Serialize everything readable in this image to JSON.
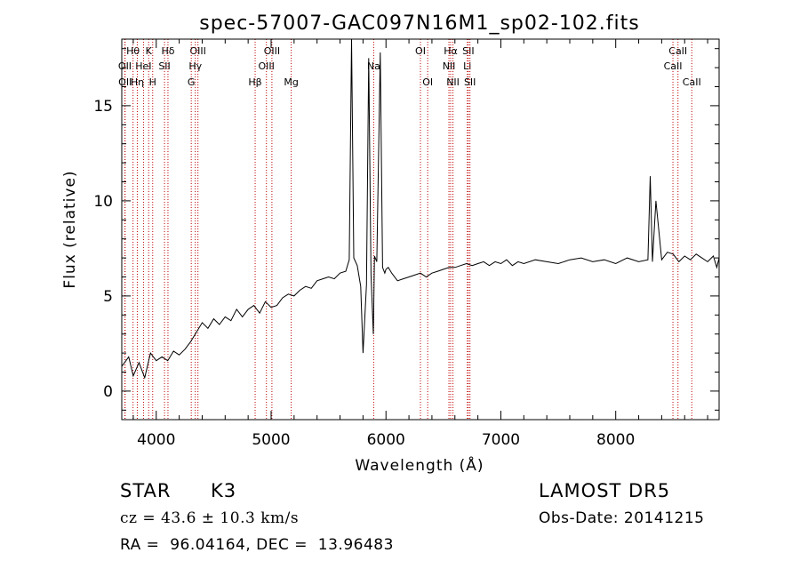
{
  "chart_data": {
    "type": "line",
    "title": "spec-57007-GAC097N16M1_sp02-102.fits",
    "xlabel": "Wavelength (Å)",
    "ylabel": "Flux (relative)",
    "xlim": [
      3700,
      8900
    ],
    "ylim": [
      -1.5,
      18.5
    ],
    "xticks": [
      4000,
      5000,
      6000,
      7000,
      8000
    ],
    "yticks": [
      0,
      5,
      10,
      15
    ],
    "grid": false,
    "series": [
      {
        "color": "#000000",
        "x": [
          3700,
          3760,
          3800,
          3850,
          3900,
          3950,
          4000,
          4050,
          4100,
          4150,
          4200,
          4250,
          4300,
          4350,
          4400,
          4450,
          4500,
          4550,
          4600,
          4650,
          4700,
          4750,
          4800,
          4850,
          4900,
          4950,
          5000,
          5050,
          5100,
          5150,
          5200,
          5250,
          5300,
          5350,
          5400,
          5450,
          5500,
          5550,
          5600,
          5650,
          5680,
          5700,
          5720,
          5750,
          5780,
          5800,
          5830,
          5850,
          5870,
          5890,
          5900,
          5920,
          5950,
          5970,
          5990,
          6000,
          6020,
          6050,
          6100,
          6150,
          6200,
          6250,
          6300,
          6350,
          6400,
          6450,
          6500,
          6550,
          6600,
          6650,
          6700,
          6750,
          6800,
          6850,
          6900,
          6950,
          7000,
          7050,
          7100,
          7150,
          7200,
          7300,
          7400,
          7500,
          7600,
          7700,
          7800,
          7900,
          8000,
          8100,
          8200,
          8280,
          8300,
          8320,
          8350,
          8400,
          8450,
          8500,
          8550,
          8600,
          8650,
          8700,
          8750,
          8800,
          8850,
          8880,
          8900
        ],
        "y": [
          1.3,
          1.8,
          0.8,
          1.5,
          0.7,
          2.0,
          1.6,
          1.8,
          1.6,
          2.1,
          1.9,
          2.2,
          2.6,
          3.1,
          3.6,
          3.3,
          3.8,
          3.5,
          3.9,
          3.7,
          4.3,
          3.9,
          4.3,
          4.5,
          4.1,
          4.7,
          4.4,
          4.5,
          4.9,
          5.1,
          5.0,
          5.3,
          5.5,
          5.4,
          5.8,
          5.9,
          6.0,
          5.9,
          6.2,
          6.3,
          6.9,
          18.5,
          7.0,
          6.6,
          5.5,
          2.0,
          5.6,
          17.5,
          6.1,
          3.0,
          7.1,
          6.8,
          17.8,
          6.5,
          6.2,
          6.4,
          6.5,
          6.2,
          5.8,
          5.9,
          6.0,
          6.1,
          6.2,
          6.0,
          6.2,
          6.3,
          6.4,
          6.5,
          6.5,
          6.6,
          6.7,
          6.6,
          6.7,
          6.8,
          6.6,
          6.8,
          6.7,
          6.9,
          6.6,
          6.8,
          6.7,
          6.9,
          6.8,
          6.7,
          6.9,
          7.0,
          6.8,
          6.9,
          6.7,
          7.0,
          6.8,
          6.9,
          11.3,
          6.8,
          10.0,
          6.9,
          7.3,
          7.2,
          6.8,
          7.1,
          6.9,
          7.2,
          7.0,
          6.8,
          7.1,
          6.5,
          7.0
        ]
      }
    ],
    "lines": [
      {
        "label": "Hθ",
        "x": 3798,
        "row": 0
      },
      {
        "label": "K",
        "x": 3934,
        "row": 0
      },
      {
        "label": "Hδ",
        "x": 4102,
        "row": 0
      },
      {
        "label": "OIII",
        "x": 4363,
        "row": 0
      },
      {
        "label": "OIII",
        "x": 5007,
        "row": 0
      },
      {
        "label": "OI",
        "x": 6300,
        "row": 0
      },
      {
        "label": "Hα",
        "x": 6563,
        "row": 0
      },
      {
        "label": "SII",
        "x": 6717,
        "row": 0
      },
      {
        "label": "CaII",
        "x": 8542,
        "row": 0
      },
      {
        "label": "OII",
        "x": 3727,
        "row": 1
      },
      {
        "label": "HeI",
        "x": 3889,
        "row": 1
      },
      {
        "label": "SII",
        "x": 4072,
        "row": 1
      },
      {
        "label": "Hγ",
        "x": 4340,
        "row": 1
      },
      {
        "label": "OIII",
        "x": 4959,
        "row": 1
      },
      {
        "label": "Na",
        "x": 5893,
        "row": 1
      },
      {
        "label": "NII",
        "x": 6548,
        "row": 1
      },
      {
        "label": "Li",
        "x": 6708,
        "row": 1
      },
      {
        "label": "CaII",
        "x": 8498,
        "row": 1
      },
      {
        "label": "OII",
        "x": 3729,
        "row": 2
      },
      {
        "label": "Hη",
        "x": 3835,
        "row": 2
      },
      {
        "label": "H",
        "x": 3969,
        "row": 2
      },
      {
        "label": "G",
        "x": 4305,
        "row": 2
      },
      {
        "label": "Hβ",
        "x": 4861,
        "row": 2
      },
      {
        "label": "Mg",
        "x": 5175,
        "row": 2
      },
      {
        "label": "OI",
        "x": 6363,
        "row": 2
      },
      {
        "label": "NII",
        "x": 6583,
        "row": 2
      },
      {
        "label": "SII",
        "x": 6731,
        "row": 2
      },
      {
        "label": "CaII",
        "x": 8662,
        "row": 2
      }
    ]
  },
  "info": {
    "object_class": "STAR",
    "subclass": "K3",
    "survey": "LAMOST DR5",
    "velocity": "cz = 43.6 ± 10.3 km/s",
    "obs_date": "Obs-Date: 20141215",
    "coords": "RA =  96.04164, DEC =  13.96483"
  },
  "colors": {
    "spectrum": "#000000",
    "line_markers": "#c00000",
    "background": "#ffffff"
  }
}
